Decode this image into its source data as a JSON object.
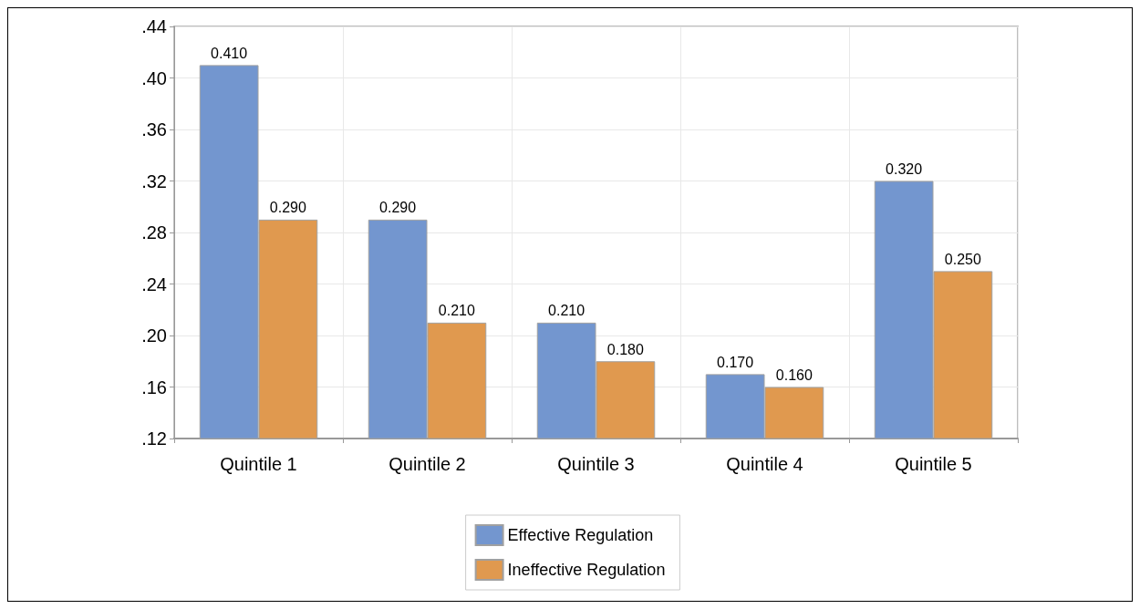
{
  "chart_data": {
    "type": "bar",
    "categories": [
      "Quintile 1",
      "Quintile 2",
      "Quintile 3",
      "Quintile 4",
      "Quintile 5"
    ],
    "series": [
      {
        "name": "Effective Regulation",
        "color": "#7396cf",
        "values": [
          0.41,
          0.29,
          0.21,
          0.17,
          0.32
        ],
        "value_labels": [
          "0.410",
          "0.290",
          "0.210",
          "0.170",
          "0.320"
        ]
      },
      {
        "name": "Ineffective Regulation",
        "color": "#e0994f",
        "values": [
          0.29,
          0.21,
          0.18,
          0.16,
          0.25
        ],
        "value_labels": [
          "0.290",
          "0.210",
          "0.180",
          "0.160",
          "0.250"
        ]
      }
    ],
    "ylim": [
      0.12,
      0.44
    ],
    "yticks": [
      {
        "value": 0.12,
        "label": ".12"
      },
      {
        "value": 0.16,
        "label": ".16"
      },
      {
        "value": 0.2,
        "label": ".20"
      },
      {
        "value": 0.24,
        "label": ".24"
      },
      {
        "value": 0.28,
        "label": ".28"
      },
      {
        "value": 0.32,
        "label": ".32"
      },
      {
        "value": 0.36,
        "label": ".36"
      },
      {
        "value": 0.4,
        "label": ".40"
      },
      {
        "value": 0.44,
        "label": ".44"
      }
    ],
    "grid": true,
    "legend": "bottom"
  }
}
